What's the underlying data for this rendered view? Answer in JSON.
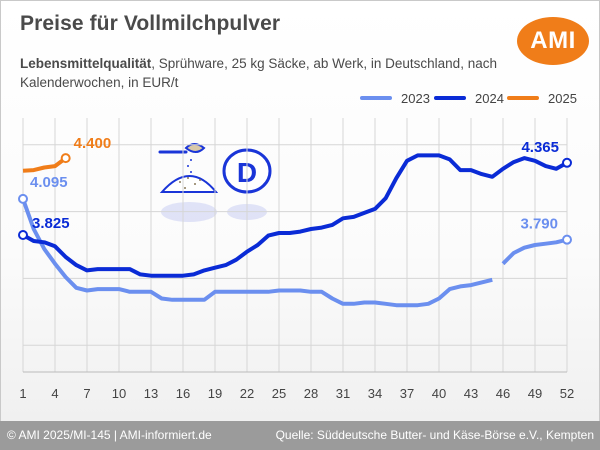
{
  "header": {
    "title": "Preise für Vollmilchpulver",
    "subtitle_bold": "Lebensmittelqualität",
    "subtitle_rest": ", Sprühware, 25 kg Säcke, ab Werk, in Deutschland, nach Kalenderwochen, in EUR/t",
    "logo_text": "AMI"
  },
  "footer": {
    "left": "© AMI 2025/MI-145 | AMI-informiert.de",
    "right": "Quelle: Süddeutsche Butter- und Käse-Börse e.V., Kempten"
  },
  "icons": [
    "milk-powder-scoop-icon",
    "germany-d-badge-icon"
  ],
  "chart_data": {
    "type": "line",
    "xlim": [
      1,
      52
    ],
    "ylim": [
      2800,
      4700
    ],
    "xticks": [
      1,
      4,
      7,
      10,
      13,
      16,
      19,
      22,
      25,
      28,
      31,
      34,
      37,
      40,
      43,
      46,
      49,
      52
    ],
    "grid": true,
    "legend_position": "top-right",
    "series": [
      {
        "name": "2023",
        "color": "#6b8fef",
        "width": 4,
        "points": [
          [
            1,
            4095
          ],
          [
            2,
            3870
          ],
          [
            3,
            3720
          ],
          [
            4,
            3610
          ],
          [
            5,
            3510
          ],
          [
            6,
            3430
          ],
          [
            7,
            3410
          ],
          [
            8,
            3420
          ],
          [
            9,
            3420
          ],
          [
            10,
            3420
          ],
          [
            11,
            3400
          ],
          [
            12,
            3400
          ],
          [
            13,
            3400
          ],
          [
            14,
            3350
          ],
          [
            15,
            3340
          ],
          [
            16,
            3340
          ],
          [
            17,
            3340
          ],
          [
            18,
            3340
          ],
          [
            19,
            3400
          ],
          [
            20,
            3400
          ],
          [
            21,
            3400
          ],
          [
            22,
            3400
          ],
          [
            23,
            3400
          ],
          [
            24,
            3400
          ],
          [
            25,
            3410
          ],
          [
            26,
            3410
          ],
          [
            27,
            3410
          ],
          [
            28,
            3400
          ],
          [
            29,
            3400
          ],
          [
            30,
            3350
          ],
          [
            31,
            3310
          ],
          [
            32,
            3310
          ],
          [
            33,
            3320
          ],
          [
            34,
            3320
          ],
          [
            35,
            3310
          ],
          [
            36,
            3300
          ],
          [
            37,
            3300
          ],
          [
            38,
            3300
          ],
          [
            39,
            3310
          ],
          [
            40,
            3350
          ],
          [
            41,
            3420
          ],
          [
            42,
            3440
          ],
          [
            43,
            3450
          ],
          [
            44,
            3470
          ],
          [
            45,
            3490
          ],
          [
            null,
            null
          ],
          [
            46,
            3610
          ],
          [
            47,
            3690
          ],
          [
            48,
            3730
          ],
          [
            49,
            3750
          ],
          [
            50,
            3760
          ],
          [
            51,
            3770
          ],
          [
            52,
            3790
          ]
        ]
      },
      {
        "name": "2024",
        "color": "#0a2bd6",
        "width": 4,
        "points": [
          [
            1,
            3825
          ],
          [
            2,
            3780
          ],
          [
            3,
            3770
          ],
          [
            4,
            3740
          ],
          [
            5,
            3660
          ],
          [
            6,
            3600
          ],
          [
            7,
            3560
          ],
          [
            8,
            3570
          ],
          [
            9,
            3570
          ],
          [
            10,
            3570
          ],
          [
            11,
            3570
          ],
          [
            12,
            3530
          ],
          [
            13,
            3520
          ],
          [
            14,
            3520
          ],
          [
            15,
            3520
          ],
          [
            16,
            3520
          ],
          [
            17,
            3530
          ],
          [
            18,
            3560
          ],
          [
            19,
            3580
          ],
          [
            20,
            3600
          ],
          [
            21,
            3640
          ],
          [
            22,
            3700
          ],
          [
            23,
            3750
          ],
          [
            24,
            3820
          ],
          [
            25,
            3840
          ],
          [
            26,
            3840
          ],
          [
            27,
            3850
          ],
          [
            28,
            3870
          ],
          [
            29,
            3880
          ],
          [
            30,
            3900
          ],
          [
            31,
            3950
          ],
          [
            32,
            3960
          ],
          [
            33,
            3990
          ],
          [
            34,
            4020
          ],
          [
            35,
            4100
          ],
          [
            36,
            4250
          ],
          [
            37,
            4380
          ],
          [
            38,
            4420
          ],
          [
            39,
            4420
          ],
          [
            40,
            4420
          ],
          [
            41,
            4390
          ],
          [
            42,
            4310
          ],
          [
            43,
            4310
          ],
          [
            44,
            4280
          ],
          [
            45,
            4260
          ],
          [
            46,
            4320
          ],
          [
            47,
            4370
          ],
          [
            48,
            4400
          ],
          [
            49,
            4380
          ],
          [
            50,
            4340
          ],
          [
            51,
            4320
          ],
          [
            52,
            4365
          ]
        ]
      },
      {
        "name": "2025",
        "color": "#f07d19",
        "width": 4,
        "points": [
          [
            1,
            4305
          ],
          [
            2,
            4310
          ],
          [
            3,
            4330
          ],
          [
            4,
            4340
          ],
          [
            5,
            4400
          ]
        ]
      }
    ],
    "labels": [
      {
        "text": "4.095",
        "series": "2023",
        "x": 1,
        "y": 4095
      },
      {
        "text": "3.825",
        "series": "2024",
        "x": 1,
        "y": 3825
      },
      {
        "text": "4.400",
        "series": "2025",
        "x": 5,
        "y": 4400
      },
      {
        "text": "4.365",
        "series": "2024",
        "x": 52,
        "y": 4365
      },
      {
        "text": "3.790",
        "series": "2023",
        "x": 52,
        "y": 3790
      }
    ]
  }
}
